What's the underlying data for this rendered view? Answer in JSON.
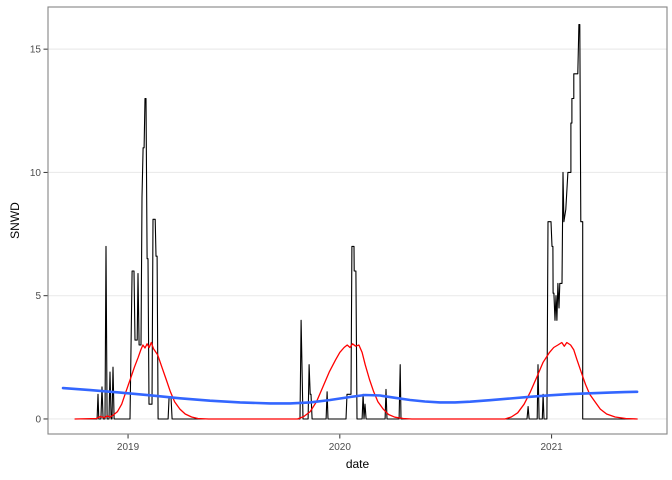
{
  "chart_data": {
    "type": "line",
    "title": "",
    "xlabel": "date",
    "ylabel": "SNWD",
    "xlim": [
      2018.622,
      2021.545
    ],
    "ylim": [
      -0.61,
      16.71
    ],
    "grid": "horizontal-major-only",
    "legend_position": "none",
    "x_ticks": [
      {
        "value": 2019,
        "label": "2019"
      },
      {
        "value": 2020,
        "label": "2020"
      },
      {
        "value": 2021,
        "label": "2021"
      }
    ],
    "y_ticks": [
      {
        "value": 0,
        "label": "0"
      },
      {
        "value": 5,
        "label": "5"
      },
      {
        "value": 10,
        "label": "10"
      },
      {
        "value": 15,
        "label": "15"
      }
    ],
    "colors": {
      "background": "#ffffff",
      "panel_border": "#858585",
      "gridline": "#ebebeb",
      "tick": "#333333",
      "tick_label": "#4d4d4d",
      "axis_title": "#000000"
    },
    "series": [
      {
        "name": "daily-snow-depth",
        "color": "#000000",
        "width": 1.1,
        "points": [
          [
            2018.75,
            0
          ],
          [
            2018.854,
            0
          ],
          [
            2018.858,
            1
          ],
          [
            2018.862,
            0
          ],
          [
            2018.872,
            0
          ],
          [
            2018.877,
            1.3
          ],
          [
            2018.882,
            0
          ],
          [
            2018.891,
            0
          ],
          [
            2018.896,
            7
          ],
          [
            2018.901,
            0
          ],
          [
            2018.91,
            0
          ],
          [
            2018.915,
            1.9
          ],
          [
            2018.92,
            0
          ],
          [
            2018.924,
            0
          ],
          [
            2018.929,
            2.1
          ],
          [
            2018.934,
            0
          ],
          [
            2019.009,
            0
          ],
          [
            2019.019,
            6
          ],
          [
            2019.028,
            6
          ],
          [
            2019.033,
            3.2
          ],
          [
            2019.043,
            3.2
          ],
          [
            2019.047,
            5.9
          ],
          [
            2019.052,
            3
          ],
          [
            2019.061,
            3
          ],
          [
            2019.066,
            9
          ],
          [
            2019.071,
            11
          ],
          [
            2019.076,
            11
          ],
          [
            2019.08,
            13
          ],
          [
            2019.085,
            13
          ],
          [
            2019.09,
            6.5
          ],
          [
            2019.094,
            6.5
          ],
          [
            2019.099,
            0.6
          ],
          [
            2019.113,
            0.6
          ],
          [
            2019.118,
            8.1
          ],
          [
            2019.128,
            8.1
          ],
          [
            2019.132,
            6.6
          ],
          [
            2019.137,
            6.6
          ],
          [
            2019.142,
            0
          ],
          [
            2019.189,
            0
          ],
          [
            2019.194,
            0.9
          ],
          [
            2019.203,
            0.9
          ],
          [
            2019.208,
            0
          ],
          [
            2019.812,
            0
          ],
          [
            2019.817,
            4
          ],
          [
            2019.826,
            0
          ],
          [
            2019.85,
            0
          ],
          [
            2019.855,
            2.2
          ],
          [
            2019.86,
            1
          ],
          [
            2019.864,
            1
          ],
          [
            2019.869,
            0
          ],
          [
            2019.935,
            0
          ],
          [
            2019.94,
            1.1
          ],
          [
            2019.944,
            0
          ],
          [
            2020.029,
            0
          ],
          [
            2020.034,
            1
          ],
          [
            2020.053,
            1
          ],
          [
            2020.057,
            7
          ],
          [
            2020.067,
            7
          ],
          [
            2020.068,
            6
          ],
          [
            2020.076,
            6
          ],
          [
            2020.081,
            0
          ],
          [
            2020.105,
            0
          ],
          [
            2020.11,
            1
          ],
          [
            2020.114,
            0
          ],
          [
            2020.119,
            0.6
          ],
          [
            2020.124,
            0
          ],
          [
            2020.214,
            0
          ],
          [
            2020.218,
            1.2
          ],
          [
            2020.223,
            0
          ],
          [
            2020.28,
            0
          ],
          [
            2020.285,
            2.2
          ],
          [
            2020.289,
            0
          ],
          [
            2020.884,
            0
          ],
          [
            2020.889,
            0.5
          ],
          [
            2020.894,
            0
          ],
          [
            2020.932,
            0
          ],
          [
            2020.936,
            2.2
          ],
          [
            2020.941,
            0
          ],
          [
            2020.956,
            0
          ],
          [
            2020.96,
            1
          ],
          [
            2020.964,
            0
          ],
          [
            2020.978,
            0
          ],
          [
            2020.983,
            8
          ],
          [
            2020.997,
            8
          ],
          [
            2021.002,
            7
          ],
          [
            2021.006,
            7
          ],
          [
            2021.007,
            5.1
          ],
          [
            2021.011,
            5.1
          ],
          [
            2021.016,
            4
          ],
          [
            2021.021,
            5
          ],
          [
            2021.025,
            4
          ],
          [
            2021.03,
            5.5
          ],
          [
            2021.035,
            4.5
          ],
          [
            2021.039,
            5.5
          ],
          [
            2021.049,
            5.5
          ],
          [
            2021.054,
            10
          ],
          [
            2021.058,
            8
          ],
          [
            2021.067,
            8.5
          ],
          [
            2021.077,
            10
          ],
          [
            2021.091,
            10
          ],
          [
            2021.091,
            12
          ],
          [
            2021.096,
            12
          ],
          [
            2021.096,
            13
          ],
          [
            2021.105,
            13
          ],
          [
            2021.105,
            14
          ],
          [
            2021.124,
            14
          ],
          [
            2021.129,
            16
          ],
          [
            2021.133,
            16
          ],
          [
            2021.138,
            8
          ],
          [
            2021.147,
            8
          ],
          [
            2021.147,
            0
          ],
          [
            2021.404,
            0
          ]
        ]
      },
      {
        "name": "seasonal-component",
        "color": "#FF0000",
        "width": 1.3,
        "points": [
          [
            2018.75,
            0
          ],
          [
            2018.85,
            0.02
          ],
          [
            2018.87,
            0.1
          ],
          [
            2018.89,
            0.05
          ],
          [
            2018.9,
            0.13
          ],
          [
            2018.915,
            0.08
          ],
          [
            2018.929,
            0.15
          ],
          [
            2018.95,
            0.3
          ],
          [
            2018.97,
            0.6
          ],
          [
            2018.99,
            1.1
          ],
          [
            2019.01,
            1.6
          ],
          [
            2019.03,
            2.1
          ],
          [
            2019.048,
            2.5
          ],
          [
            2019.06,
            2.8
          ],
          [
            2019.07,
            3.0
          ],
          [
            2019.08,
            2.88
          ],
          [
            2019.09,
            3.05
          ],
          [
            2019.1,
            2.9
          ],
          [
            2019.11,
            3.1
          ],
          [
            2019.12,
            2.85
          ],
          [
            2019.14,
            2.6
          ],
          [
            2019.16,
            2.1
          ],
          [
            2019.18,
            1.6
          ],
          [
            2019.2,
            1.1
          ],
          [
            2019.22,
            0.7
          ],
          [
            2019.245,
            0.4
          ],
          [
            2019.27,
            0.2
          ],
          [
            2019.3,
            0.08
          ],
          [
            2019.33,
            0.02
          ],
          [
            2019.38,
            0
          ],
          [
            2019.8,
            0
          ],
          [
            2019.83,
            0.1
          ],
          [
            2019.86,
            0.3
          ],
          [
            2019.89,
            0.7
          ],
          [
            2019.92,
            1.3
          ],
          [
            2019.95,
            1.9
          ],
          [
            2019.98,
            2.4
          ],
          [
            2020.0,
            2.7
          ],
          [
            2020.02,
            2.9
          ],
          [
            2020.035,
            3.0
          ],
          [
            2020.048,
            2.9
          ],
          [
            2020.06,
            3.05
          ],
          [
            2020.075,
            2.95
          ],
          [
            2020.09,
            3.0
          ],
          [
            2020.105,
            2.7
          ],
          [
            2020.12,
            2.2
          ],
          [
            2020.14,
            1.6
          ],
          [
            2020.16,
            1.1
          ],
          [
            2020.18,
            0.7
          ],
          [
            2020.205,
            0.4
          ],
          [
            2020.23,
            0.18
          ],
          [
            2020.26,
            0.07
          ],
          [
            2020.3,
            0.02
          ],
          [
            2020.34,
            0
          ],
          [
            2020.78,
            0
          ],
          [
            2020.81,
            0.08
          ],
          [
            2020.84,
            0.25
          ],
          [
            2020.87,
            0.6
          ],
          [
            2020.9,
            1.1
          ],
          [
            2020.93,
            1.7
          ],
          [
            2020.96,
            2.3
          ],
          [
            2020.99,
            2.7
          ],
          [
            2021.01,
            2.9
          ],
          [
            2021.03,
            3.0
          ],
          [
            2021.048,
            3.1
          ],
          [
            2021.06,
            2.95
          ],
          [
            2021.072,
            3.1
          ],
          [
            2021.09,
            3.0
          ],
          [
            2021.105,
            2.8
          ],
          [
            2021.12,
            2.4
          ],
          [
            2021.14,
            1.9
          ],
          [
            2021.16,
            1.4
          ],
          [
            2021.18,
            1.0
          ],
          [
            2021.205,
            0.7
          ],
          [
            2021.23,
            0.4
          ],
          [
            2021.26,
            0.2
          ],
          [
            2021.3,
            0.08
          ],
          [
            2021.35,
            0.02
          ],
          [
            2021.404,
            0
          ]
        ]
      },
      {
        "name": "trend-smooth",
        "color": "#3366FF",
        "width": 2.6,
        "points": [
          [
            2018.693,
            1.25
          ],
          [
            2018.821,
            1.17
          ],
          [
            2018.962,
            1.07
          ],
          [
            2019.104,
            0.96
          ],
          [
            2019.246,
            0.84
          ],
          [
            2019.387,
            0.74
          ],
          [
            2019.529,
            0.67
          ],
          [
            2019.671,
            0.63
          ],
          [
            2019.765,
            0.63
          ],
          [
            2019.86,
            0.67
          ],
          [
            2019.954,
            0.77
          ],
          [
            2020.048,
            0.89
          ],
          [
            2020.119,
            0.97
          ],
          [
            2020.19,
            0.95
          ],
          [
            2020.261,
            0.86
          ],
          [
            2020.332,
            0.77
          ],
          [
            2020.402,
            0.71
          ],
          [
            2020.473,
            0.67
          ],
          [
            2020.544,
            0.67
          ],
          [
            2020.615,
            0.7
          ],
          [
            2020.709,
            0.76
          ],
          [
            2020.804,
            0.83
          ],
          [
            2020.898,
            0.9
          ],
          [
            2020.992,
            0.96
          ],
          [
            2021.087,
            1.01
          ],
          [
            2021.181,
            1.04
          ],
          [
            2021.275,
            1.07
          ],
          [
            2021.346,
            1.09
          ],
          [
            2021.404,
            1.1
          ]
        ]
      }
    ]
  }
}
